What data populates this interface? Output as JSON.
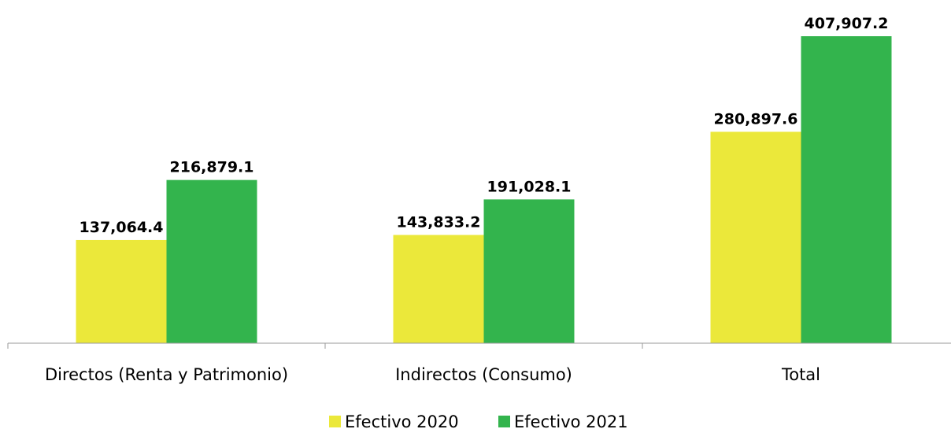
{
  "chart_data": {
    "type": "bar",
    "categories": [
      "Directos (Renta y Patrimonio)",
      "Indirectos (Consumo)",
      "Total"
    ],
    "series": [
      {
        "name": "Efectivo 2020",
        "values": [
          137064.4,
          143833.2,
          280897.6
        ],
        "labels": [
          "137,064.4",
          "143,833.2",
          "280,897.6"
        ],
        "color": "#EBE83A"
      },
      {
        "name": "Efectivo 2021",
        "values": [
          216879.1,
          191028.1,
          407907.2
        ],
        "labels": [
          "216,879.1",
          "191,028.1",
          "407,907.2"
        ],
        "color": "#33B44D"
      }
    ],
    "ylim": [
      0,
      407907.2
    ],
    "grid": false,
    "legend_position": "bottom"
  }
}
